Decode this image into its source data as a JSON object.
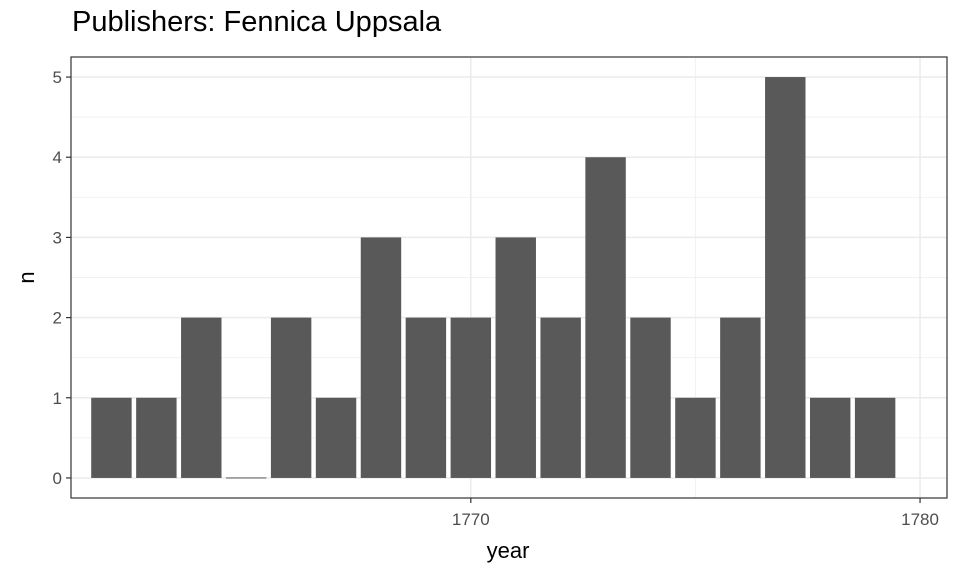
{
  "chart_data": {
    "type": "bar",
    "title": "Publishers: Fennica Uppsala",
    "xlabel": "year",
    "ylabel": "n",
    "x": [
      1762,
      1763,
      1764,
      1765,
      1766,
      1767,
      1768,
      1769,
      1770,
      1771,
      1772,
      1773,
      1774,
      1775,
      1776,
      1777,
      1778,
      1779
    ],
    "values": [
      1,
      1,
      2,
      0,
      2,
      1,
      3,
      2,
      2,
      3,
      2,
      4,
      2,
      1,
      2,
      5,
      1,
      1
    ],
    "xlim": [
      1761.1,
      1780.6
    ],
    "ylim": [
      -0.25,
      5.25
    ],
    "xticks": [
      1770,
      1780
    ],
    "xtick_labels": [
      "1770",
      "1780"
    ],
    "yticks": [
      0,
      1,
      2,
      3,
      4,
      5
    ],
    "ytick_labels": [
      "0",
      "1",
      "2",
      "3",
      "4",
      "5"
    ],
    "bar_color": "#595959",
    "grid": true,
    "theme": "bw"
  }
}
